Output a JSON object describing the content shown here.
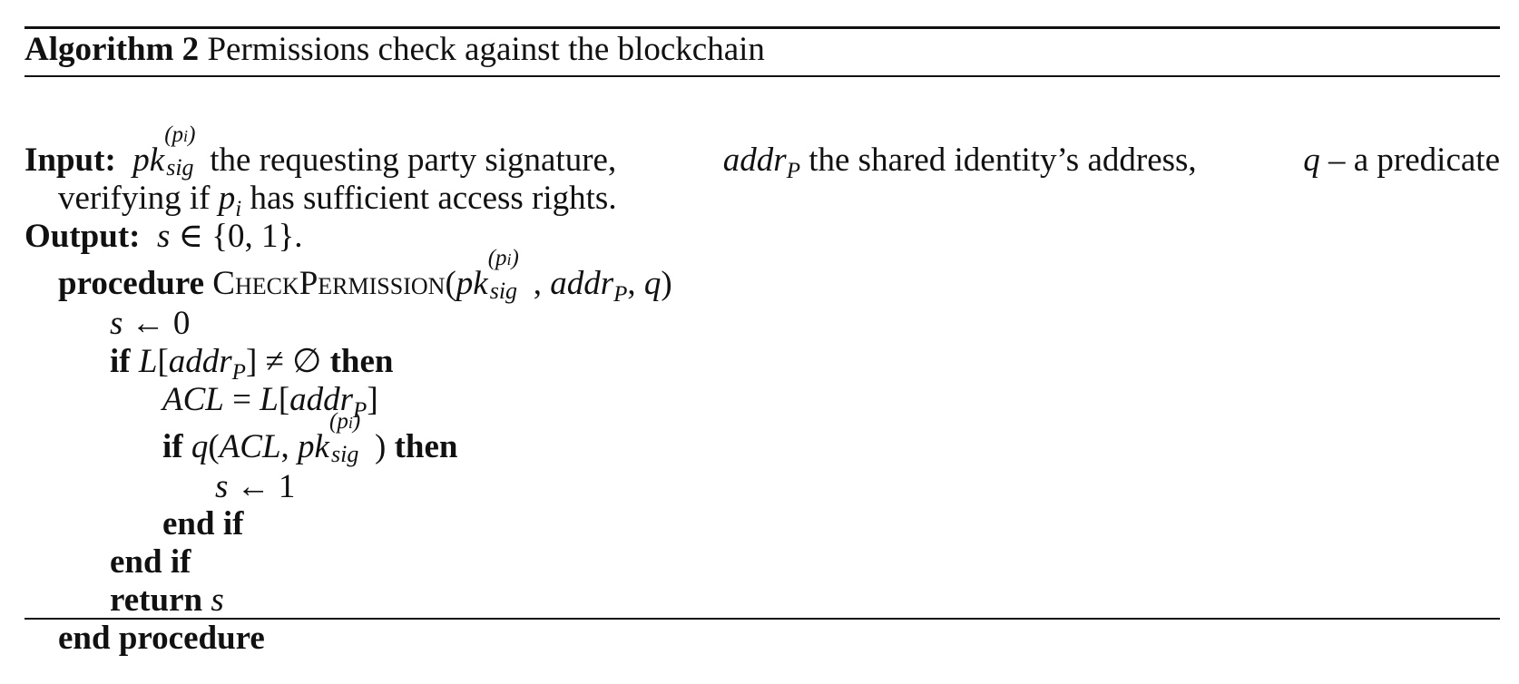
{
  "caption": {
    "label": "Algorithm 2",
    "title": "Permissions check against the blockchain"
  },
  "input": {
    "label": "Input:",
    "text_1": "the requesting party signature,",
    "text_2": "the shared identity’s address,",
    "text_3": "– a predicate",
    "text_4": "verifying if",
    "text_5": "has sufficient access rights."
  },
  "output": {
    "label": "Output:",
    "expr": "s ∈ {0, 1}."
  },
  "procedure": {
    "keyword": "procedure",
    "name": "CheckPermission",
    "end": "end procedure"
  },
  "lines": {
    "assign_0": "s ← 0",
    "if_kw": "if",
    "then_kw": "then",
    "acl_assign": "ACL = L[addr",
    "assign_1": "s ← 1",
    "end_if": "end if",
    "return_kw": "return",
    "return_val": "s"
  },
  "symbols": {
    "pk": "pk",
    "sig": "sig",
    "pi_sup": "(p",
    "addr": "addr",
    "P": "P",
    "q": "q",
    "p": "p",
    "i": "i",
    "L": "L",
    "ACL": "ACL"
  }
}
